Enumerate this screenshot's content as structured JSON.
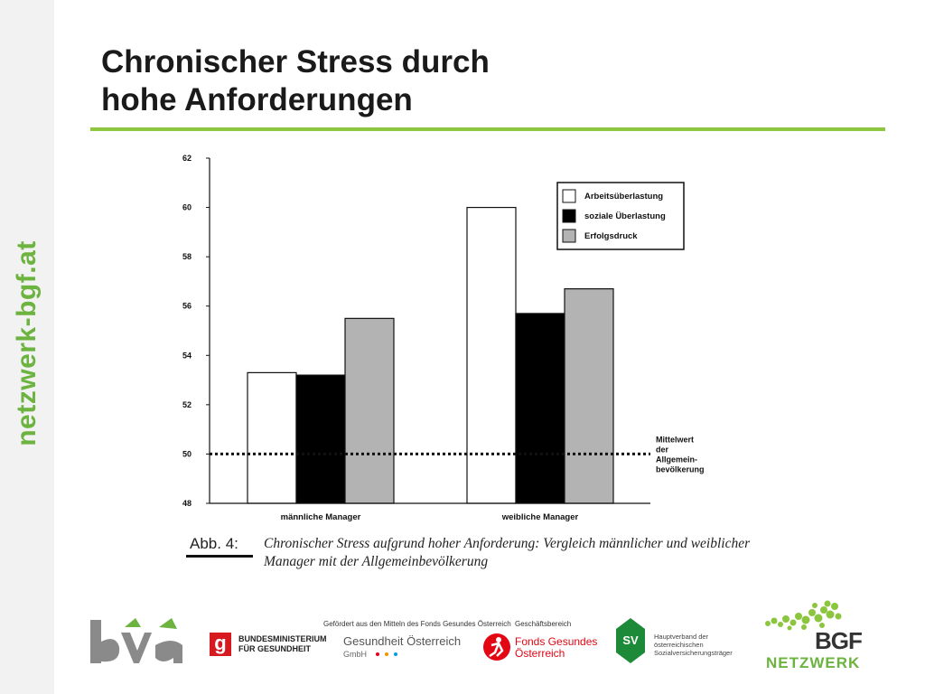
{
  "brand": {
    "vertical_text": "netzwerk-bgf.at"
  },
  "title": {
    "line1": "Chronischer Stress durch",
    "line2": "hohe Anforderungen"
  },
  "chart_data": {
    "type": "bar",
    "categories": [
      "männliche Manager",
      "weibliche Manager"
    ],
    "series": [
      {
        "name": "Arbeitsüberlastung",
        "values": [
          53.3,
          60.0
        ],
        "color": "#ffffff"
      },
      {
        "name": "soziale Überlastung",
        "values": [
          53.2,
          55.7
        ],
        "color": "#000000"
      },
      {
        "name": "Erfolgsdruck",
        "values": [
          55.5,
          56.7
        ],
        "color": "#b3b3b3"
      }
    ],
    "ylim": [
      48,
      62
    ],
    "yticks": [
      48,
      50,
      52,
      54,
      56,
      58,
      60,
      62
    ],
    "reference_line": {
      "value": 50,
      "label_lines": [
        "Mittelwert",
        "der",
        "Allgemein-",
        "bevölkerung"
      ],
      "style": "dotted"
    },
    "legend_position": "top-right",
    "title": "",
    "xlabel": "",
    "ylabel": ""
  },
  "caption": {
    "label": "Abb. 4:",
    "text": "Chronischer Stress aufgrund hoher Anforderung: Vergleich männlicher und weiblicher Manager mit der Allgemeinbevölkerung"
  },
  "footer": {
    "bva_text": "bva",
    "ministry_mark": "g",
    "ministry_line1": "BUNDESMINISTERIUM",
    "ministry_line2": "FÜR GESUNDHEIT",
    "funded_by": "Gefördert aus den Mitteln des Fonds Gesundes Österreich",
    "gesundheit_name": "Gesundheit Österreich",
    "gesundheit_sub": "GmbH",
    "office_label": "Geschäftsbereich",
    "fgo_line1": "Fonds Gesundes",
    "fgo_line2": "Österreich",
    "sv_mark": "SV",
    "hv_line1": "Hauptverband der",
    "hv_line2": "österreichischen",
    "hv_line3": "Sozialversicherungsträger",
    "bgf_text": "BGF",
    "netzwerk_text": "NETZWERK"
  }
}
